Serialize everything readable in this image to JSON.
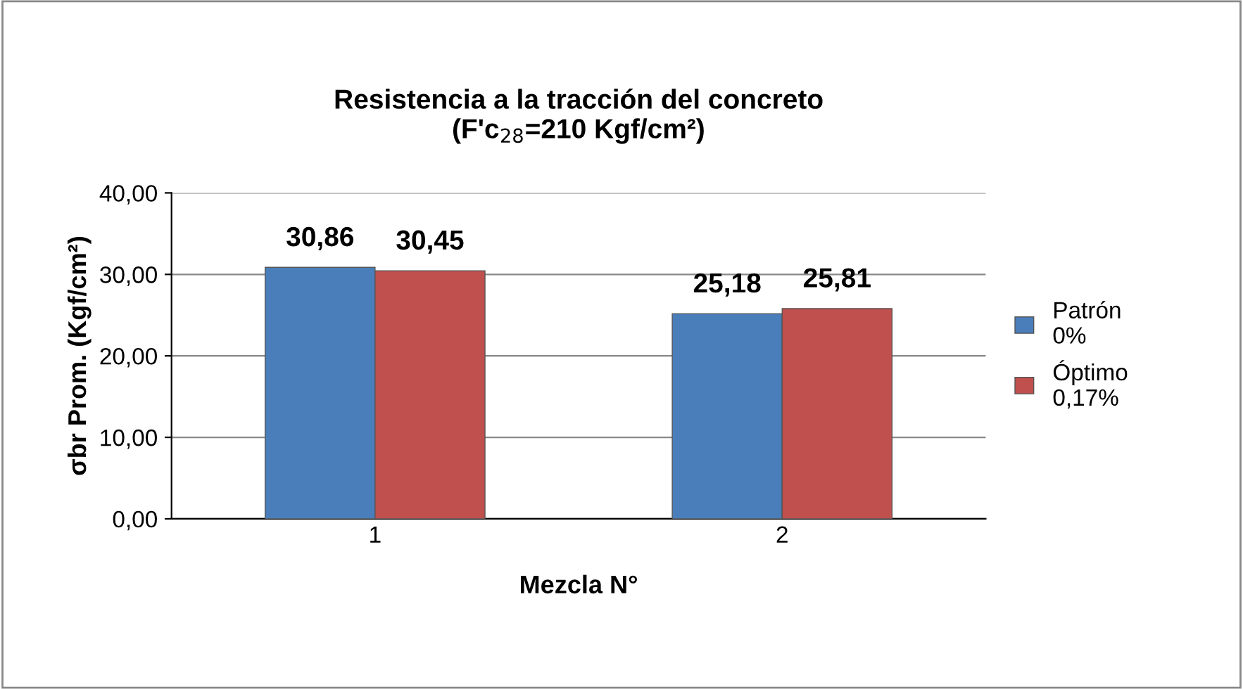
{
  "chart_data": {
    "type": "bar",
    "title": "Resistencia a la tracción del concreto\n(F'c$_{28}$=210 Kgf/cm²)",
    "xlabel": "Mezcla N°",
    "ylabel": "σbr Prom. (Kgf/cm²)",
    "categories": [
      "1",
      "2"
    ],
    "series": [
      {
        "name": "Patrón\n0%",
        "color": "#4a7ebb",
        "values": [
          30.86,
          25.18
        ],
        "value_labels": [
          "30,86",
          "25,18"
        ]
      },
      {
        "name": "Óptimo\n0,17%",
        "color": "#c0504d",
        "values": [
          30.45,
          25.81
        ],
        "value_labels": [
          "30,45",
          "25,81"
        ]
      }
    ],
    "ylim": [
      0,
      40
    ],
    "yticks": [
      {
        "value": 0,
        "label": "0,00"
      },
      {
        "value": 10,
        "label": "10,00"
      },
      {
        "value": 20,
        "label": "20,00"
      },
      {
        "value": 30,
        "label": "30,00"
      },
      {
        "value": 40,
        "label": "40,00"
      }
    ],
    "grid": "y",
    "legend": "right"
  }
}
